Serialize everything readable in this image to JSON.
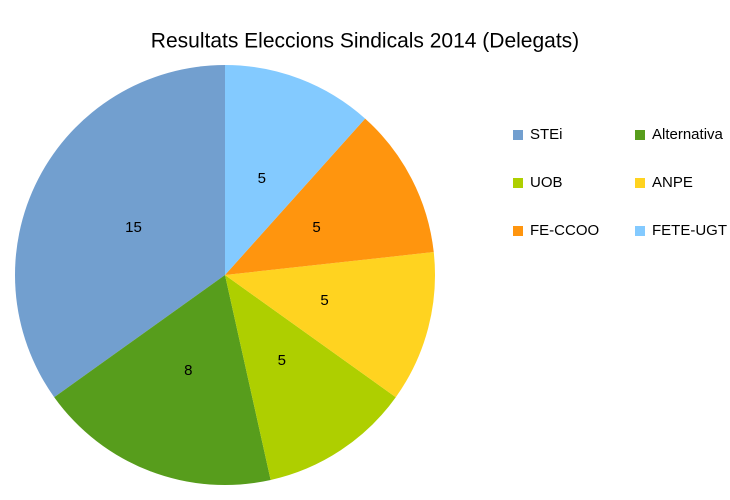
{
  "chart_data": {
    "type": "pie",
    "title": "Resultats Eleccions Sindicals 2014 (Delegats)",
    "categories": [
      "STEi",
      "Alternativa",
      "UOB",
      "ANPE",
      "FE-CCOO",
      "FETE-UGT"
    ],
    "values": [
      15,
      8,
      5,
      5,
      5,
      5
    ],
    "colors": [
      "#729fcf",
      "#579d1c",
      "#aecf00",
      "#ffd320",
      "#ff950e",
      "#83caff"
    ],
    "legend": "right"
  }
}
